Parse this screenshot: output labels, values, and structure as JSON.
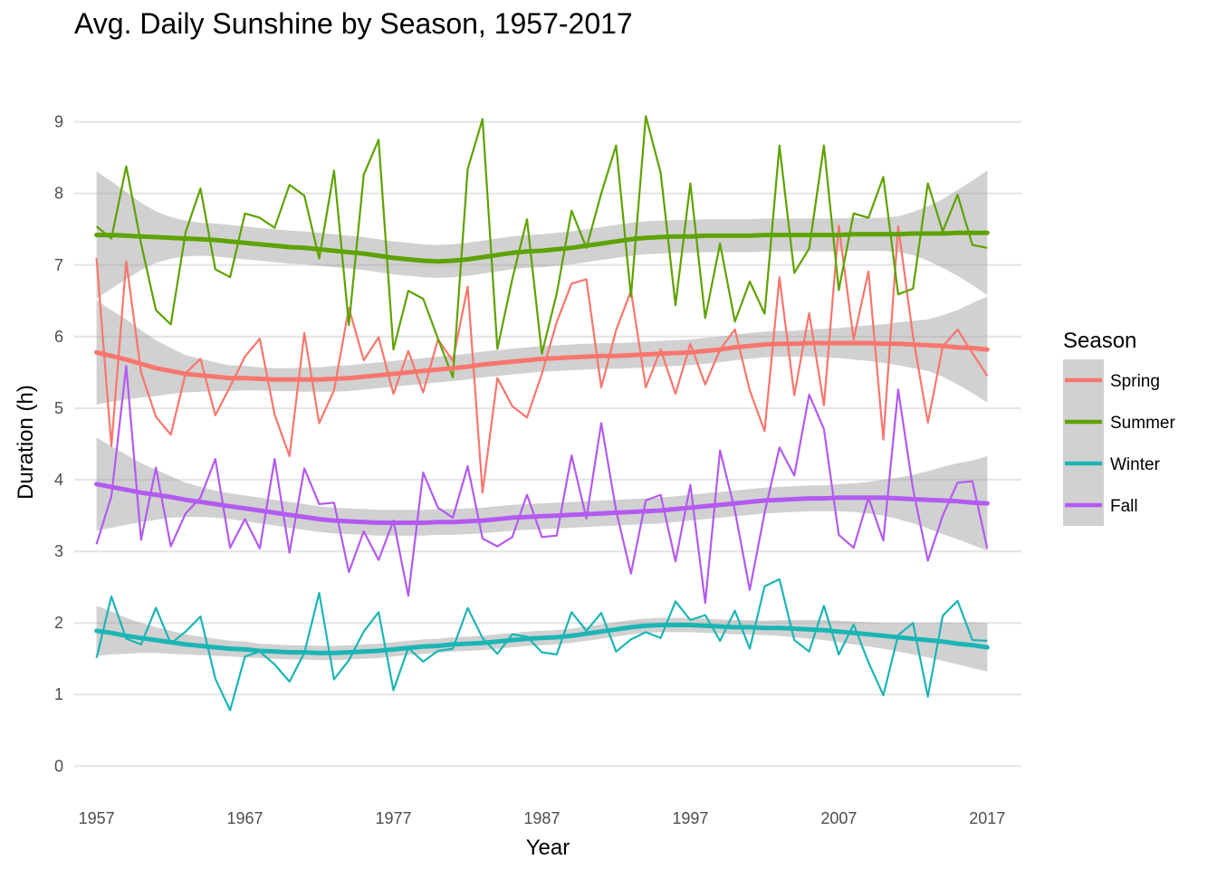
{
  "chart_data": {
    "type": "line",
    "title": "Avg. Daily Sunshine by Season, 1957-2017",
    "xlabel": "Year",
    "ylabel": "Duration (h)",
    "xlim": [
      1955.5,
      2019.3
    ],
    "ylim": [
      -0.35,
      9.4
    ],
    "xticks": [
      1957,
      1967,
      1977,
      1987,
      1997,
      2007,
      2017
    ],
    "yticks": [
      0,
      1,
      2,
      3,
      4,
      5,
      6,
      7,
      8,
      9
    ],
    "grid": true,
    "legend": {
      "title": "Season",
      "position": "right"
    },
    "x": [
      1957,
      1958,
      1959,
      1960,
      1961,
      1962,
      1963,
      1964,
      1965,
      1966,
      1967,
      1968,
      1969,
      1970,
      1971,
      1972,
      1973,
      1974,
      1975,
      1976,
      1977,
      1978,
      1979,
      1980,
      1981,
      1982,
      1983,
      1984,
      1985,
      1986,
      1987,
      1988,
      1989,
      1990,
      1991,
      1992,
      1993,
      1994,
      1995,
      1996,
      1997,
      1998,
      1999,
      2000,
      2001,
      2002,
      2003,
      2004,
      2005,
      2006,
      2007,
      2008,
      2009,
      2010,
      2011,
      2012,
      2013,
      2014,
      2015,
      2016,
      2017
    ],
    "series": [
      {
        "name": "Spring",
        "color": "#f8766d",
        "values": [
          7.1,
          4.47,
          7.05,
          5.5,
          4.88,
          4.63,
          5.49,
          5.69,
          4.9,
          5.3,
          5.72,
          5.97,
          4.91,
          4.33,
          6.05,
          4.79,
          5.25,
          6.4,
          5.67,
          5.99,
          5.2,
          5.8,
          5.22,
          5.96,
          5.66,
          6.7,
          3.82,
          5.42,
          5.03,
          4.87,
          5.48,
          6.2,
          6.74,
          6.8,
          5.29,
          6.09,
          6.64,
          5.29,
          5.82,
          5.2,
          5.9,
          5.33,
          5.82,
          6.1,
          5.25,
          4.68,
          6.83,
          5.18,
          6.33,
          5.04,
          7.55,
          5.96,
          6.91,
          4.56,
          7.54,
          6.0,
          4.8,
          5.86,
          6.1,
          5.77,
          5.45
        ],
        "trend": [
          5.78,
          5.73,
          5.68,
          5.62,
          5.56,
          5.52,
          5.48,
          5.46,
          5.44,
          5.42,
          5.42,
          5.41,
          5.4,
          5.4,
          5.4,
          5.4,
          5.41,
          5.42,
          5.44,
          5.46,
          5.48,
          5.5,
          5.52,
          5.54,
          5.56,
          5.58,
          5.61,
          5.63,
          5.65,
          5.67,
          5.69,
          5.7,
          5.71,
          5.72,
          5.73,
          5.73,
          5.74,
          5.75,
          5.76,
          5.77,
          5.78,
          5.8,
          5.82,
          5.85,
          5.87,
          5.89,
          5.9,
          5.9,
          5.91,
          5.91,
          5.91,
          5.91,
          5.91,
          5.9,
          5.9,
          5.89,
          5.88,
          5.87,
          5.85,
          5.84,
          5.82
        ],
        "ci_lower": [
          5.05,
          5.09,
          5.12,
          5.15,
          5.17,
          5.2,
          5.22,
          5.23,
          5.24,
          5.24,
          5.25,
          5.25,
          5.24,
          5.24,
          5.23,
          5.23,
          5.23,
          5.24,
          5.26,
          5.28,
          5.3,
          5.32,
          5.34,
          5.36,
          5.38,
          5.4,
          5.43,
          5.45,
          5.47,
          5.49,
          5.51,
          5.52,
          5.53,
          5.54,
          5.55,
          5.55,
          5.56,
          5.57,
          5.58,
          5.59,
          5.6,
          5.62,
          5.64,
          5.67,
          5.69,
          5.71,
          5.72,
          5.72,
          5.72,
          5.71,
          5.7,
          5.68,
          5.66,
          5.63,
          5.6,
          5.56,
          5.52,
          5.44,
          5.33,
          5.21,
          5.08
        ],
        "ci_upper": [
          6.51,
          6.37,
          6.24,
          6.09,
          5.95,
          5.84,
          5.74,
          5.69,
          5.64,
          5.6,
          5.59,
          5.57,
          5.56,
          5.56,
          5.57,
          5.57,
          5.59,
          5.6,
          5.62,
          5.64,
          5.66,
          5.68,
          5.7,
          5.72,
          5.74,
          5.76,
          5.79,
          5.81,
          5.83,
          5.85,
          5.87,
          5.88,
          5.89,
          5.9,
          5.91,
          5.91,
          5.92,
          5.93,
          5.94,
          5.95,
          5.96,
          5.98,
          6.0,
          6.03,
          6.05,
          6.07,
          6.08,
          6.08,
          6.1,
          6.11,
          6.12,
          6.14,
          6.16,
          6.17,
          6.2,
          6.22,
          6.24,
          6.3,
          6.37,
          6.47,
          6.56
        ]
      },
      {
        "name": "Summer",
        "color": "#5ea200",
        "values": [
          7.54,
          7.37,
          8.38,
          7.3,
          6.37,
          6.17,
          7.46,
          8.07,
          6.94,
          6.83,
          7.72,
          7.66,
          7.52,
          8.12,
          7.97,
          7.09,
          8.32,
          6.16,
          8.26,
          8.75,
          5.82,
          6.64,
          6.53,
          5.97,
          5.43,
          8.34,
          9.04,
          5.83,
          6.8,
          7.64,
          5.76,
          6.6,
          7.76,
          7.24,
          8.0,
          8.67,
          6.56,
          9.08,
          8.29,
          6.44,
          8.14,
          6.26,
          7.3,
          6.21,
          6.77,
          6.32,
          8.67,
          6.89,
          7.23,
          8.67,
          6.65,
          7.72,
          7.66,
          8.23,
          6.59,
          6.67,
          8.14,
          7.47,
          7.98,
          7.28,
          7.24
        ],
        "trend": [
          7.42,
          7.42,
          7.41,
          7.4,
          7.39,
          7.38,
          7.37,
          7.36,
          7.35,
          7.33,
          7.31,
          7.29,
          7.27,
          7.25,
          7.24,
          7.22,
          7.2,
          7.18,
          7.16,
          7.13,
          7.1,
          7.08,
          7.06,
          7.05,
          7.06,
          7.08,
          7.11,
          7.14,
          7.17,
          7.19,
          7.2,
          7.22,
          7.24,
          7.27,
          7.3,
          7.33,
          7.36,
          7.38,
          7.39,
          7.4,
          7.4,
          7.41,
          7.41,
          7.41,
          7.41,
          7.42,
          7.42,
          7.42,
          7.42,
          7.42,
          7.42,
          7.43,
          7.43,
          7.43,
          7.43,
          7.44,
          7.44,
          7.44,
          7.45,
          7.45,
          7.45
        ],
        "ci_lower": [
          6.53,
          6.67,
          6.8,
          6.93,
          7.03,
          7.09,
          7.12,
          7.13,
          7.12,
          7.1,
          7.08,
          7.06,
          7.04,
          7.02,
          7.01,
          6.99,
          6.97,
          6.95,
          6.93,
          6.9,
          6.87,
          6.85,
          6.83,
          6.82,
          6.83,
          6.85,
          6.88,
          6.91,
          6.94,
          6.96,
          6.97,
          6.99,
          7.01,
          7.04,
          7.07,
          7.1,
          7.13,
          7.15,
          7.16,
          7.17,
          7.17,
          7.18,
          7.18,
          7.18,
          7.18,
          7.19,
          7.19,
          7.19,
          7.19,
          7.19,
          7.19,
          7.2,
          7.2,
          7.2,
          7.18,
          7.14,
          7.06,
          6.96,
          6.85,
          6.72,
          6.58
        ],
        "ci_upper": [
          8.31,
          8.17,
          8.02,
          7.87,
          7.75,
          7.67,
          7.62,
          7.59,
          7.58,
          7.56,
          7.54,
          7.52,
          7.5,
          7.48,
          7.47,
          7.45,
          7.43,
          7.41,
          7.39,
          7.36,
          7.33,
          7.31,
          7.29,
          7.28,
          7.29,
          7.31,
          7.34,
          7.37,
          7.4,
          7.42,
          7.43,
          7.45,
          7.47,
          7.5,
          7.53,
          7.56,
          7.59,
          7.61,
          7.62,
          7.63,
          7.63,
          7.64,
          7.64,
          7.64,
          7.64,
          7.65,
          7.65,
          7.65,
          7.65,
          7.65,
          7.65,
          7.66,
          7.66,
          7.66,
          7.68,
          7.74,
          7.82,
          7.92,
          8.05,
          8.18,
          8.32
        ]
      },
      {
        "name": "Winter",
        "color": "#1cb5b5",
        "values": [
          1.51,
          2.37,
          1.78,
          1.7,
          2.21,
          1.71,
          1.88,
          2.09,
          1.22,
          0.78,
          1.53,
          1.6,
          1.42,
          1.18,
          1.58,
          2.42,
          1.21,
          1.48,
          1.88,
          2.15,
          1.06,
          1.65,
          1.46,
          1.61,
          1.64,
          2.21,
          1.79,
          1.57,
          1.84,
          1.81,
          1.59,
          1.56,
          2.15,
          1.89,
          2.14,
          1.6,
          1.77,
          1.87,
          1.79,
          2.3,
          2.04,
          2.11,
          1.75,
          2.17,
          1.64,
          2.51,
          2.61,
          1.76,
          1.6,
          2.24,
          1.56,
          1.98,
          1.45,
          0.99,
          1.83,
          2.0,
          0.97,
          2.1,
          2.31,
          1.76,
          1.75
        ],
        "trend": [
          1.89,
          1.86,
          1.82,
          1.79,
          1.76,
          1.73,
          1.7,
          1.68,
          1.66,
          1.64,
          1.63,
          1.61,
          1.6,
          1.59,
          1.59,
          1.58,
          1.58,
          1.59,
          1.6,
          1.61,
          1.63,
          1.65,
          1.67,
          1.68,
          1.7,
          1.71,
          1.72,
          1.74,
          1.76,
          1.78,
          1.79,
          1.8,
          1.82,
          1.85,
          1.88,
          1.91,
          1.94,
          1.96,
          1.97,
          1.97,
          1.97,
          1.96,
          1.95,
          1.94,
          1.94,
          1.93,
          1.93,
          1.92,
          1.91,
          1.9,
          1.88,
          1.86,
          1.84,
          1.82,
          1.8,
          1.78,
          1.76,
          1.74,
          1.71,
          1.69,
          1.66
        ],
        "ci_lower": [
          1.54,
          1.56,
          1.57,
          1.58,
          1.58,
          1.57,
          1.56,
          1.55,
          1.54,
          1.53,
          1.52,
          1.51,
          1.5,
          1.49,
          1.49,
          1.48,
          1.48,
          1.49,
          1.5,
          1.51,
          1.53,
          1.55,
          1.57,
          1.58,
          1.6,
          1.61,
          1.62,
          1.64,
          1.66,
          1.68,
          1.69,
          1.7,
          1.72,
          1.75,
          1.78,
          1.81,
          1.84,
          1.86,
          1.87,
          1.87,
          1.87,
          1.86,
          1.85,
          1.84,
          1.84,
          1.83,
          1.82,
          1.8,
          1.78,
          1.76,
          1.73,
          1.7,
          1.67,
          1.64,
          1.6,
          1.56,
          1.52,
          1.47,
          1.42,
          1.37,
          1.32
        ],
        "ci_upper": [
          2.24,
          2.16,
          2.07,
          2.0,
          1.94,
          1.89,
          1.84,
          1.81,
          1.78,
          1.75,
          1.74,
          1.71,
          1.7,
          1.69,
          1.69,
          1.68,
          1.68,
          1.69,
          1.7,
          1.71,
          1.73,
          1.75,
          1.77,
          1.78,
          1.8,
          1.81,
          1.82,
          1.84,
          1.86,
          1.88,
          1.89,
          1.9,
          1.92,
          1.95,
          1.98,
          2.01,
          2.04,
          2.06,
          2.07,
          2.07,
          2.07,
          2.06,
          2.05,
          2.04,
          2.04,
          2.03,
          2.04,
          2.04,
          2.04,
          2.04,
          2.03,
          2.02,
          2.01,
          2.0,
          2.0,
          2.0,
          2.0,
          2.01,
          2.0,
          2.01,
          2.0
        ]
      },
      {
        "name": "Fall",
        "color": "#b35af0",
        "values": [
          3.1,
          3.77,
          5.59,
          3.16,
          4.17,
          3.07,
          3.53,
          3.75,
          4.29,
          3.05,
          3.45,
          3.04,
          4.29,
          2.98,
          4.16,
          3.66,
          3.68,
          2.71,
          3.28,
          2.88,
          3.43,
          2.38,
          4.1,
          3.61,
          3.47,
          4.19,
          3.18,
          3.07,
          3.2,
          3.79,
          3.2,
          3.22,
          4.34,
          3.46,
          4.79,
          3.57,
          2.69,
          3.71,
          3.79,
          2.86,
          3.93,
          2.28,
          4.41,
          3.57,
          2.46,
          3.54,
          4.45,
          4.06,
          5.19,
          4.71,
          3.23,
          3.05,
          3.75,
          3.15,
          5.26,
          3.87,
          2.87,
          3.5,
          3.96,
          3.98,
          3.04
        ],
        "trend": [
          3.94,
          3.9,
          3.86,
          3.82,
          3.79,
          3.76,
          3.72,
          3.69,
          3.66,
          3.63,
          3.6,
          3.57,
          3.54,
          3.51,
          3.48,
          3.45,
          3.43,
          3.42,
          3.41,
          3.4,
          3.4,
          3.4,
          3.4,
          3.41,
          3.41,
          3.42,
          3.43,
          3.45,
          3.47,
          3.48,
          3.49,
          3.5,
          3.51,
          3.52,
          3.53,
          3.54,
          3.55,
          3.56,
          3.57,
          3.59,
          3.61,
          3.63,
          3.65,
          3.67,
          3.69,
          3.71,
          3.72,
          3.73,
          3.74,
          3.74,
          3.75,
          3.75,
          3.75,
          3.75,
          3.74,
          3.73,
          3.72,
          3.71,
          3.7,
          3.68,
          3.67
        ],
        "ci_lower": [
          3.29,
          3.33,
          3.37,
          3.41,
          3.44,
          3.47,
          3.48,
          3.48,
          3.47,
          3.45,
          3.42,
          3.39,
          3.36,
          3.33,
          3.3,
          3.27,
          3.25,
          3.24,
          3.23,
          3.22,
          3.22,
          3.22,
          3.22,
          3.23,
          3.23,
          3.24,
          3.25,
          3.27,
          3.29,
          3.3,
          3.31,
          3.32,
          3.33,
          3.34,
          3.35,
          3.36,
          3.37,
          3.38,
          3.39,
          3.41,
          3.43,
          3.45,
          3.47,
          3.49,
          3.51,
          3.53,
          3.54,
          3.55,
          3.56,
          3.56,
          3.56,
          3.55,
          3.53,
          3.5,
          3.45,
          3.39,
          3.32,
          3.24,
          3.17,
          3.09,
          3.01
        ],
        "ci_upper": [
          4.59,
          4.47,
          4.35,
          4.23,
          4.14,
          4.05,
          3.96,
          3.9,
          3.85,
          3.81,
          3.78,
          3.75,
          3.72,
          3.69,
          3.66,
          3.63,
          3.61,
          3.6,
          3.59,
          3.58,
          3.58,
          3.58,
          3.58,
          3.59,
          3.59,
          3.6,
          3.61,
          3.63,
          3.65,
          3.66,
          3.67,
          3.68,
          3.69,
          3.7,
          3.71,
          3.72,
          3.73,
          3.74,
          3.75,
          3.77,
          3.79,
          3.81,
          3.83,
          3.85,
          3.87,
          3.89,
          3.9,
          3.91,
          3.92,
          3.92,
          3.94,
          3.95,
          3.97,
          4.0,
          4.03,
          4.07,
          4.12,
          4.18,
          4.23,
          4.27,
          4.33
        ]
      }
    ]
  }
}
